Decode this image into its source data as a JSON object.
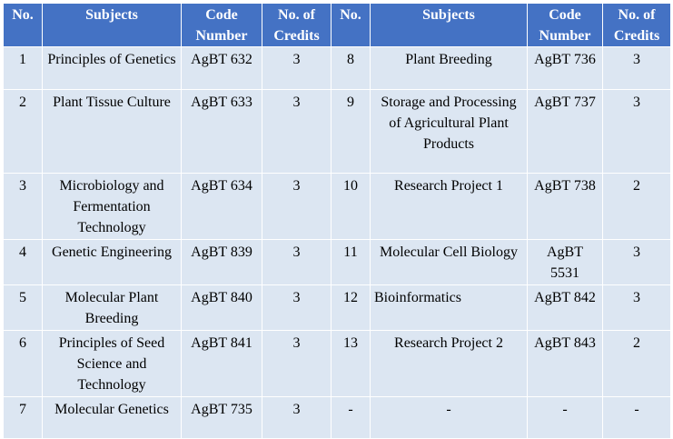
{
  "headers": [
    "No.",
    "Subjects",
    "Code Number",
    "No. of Credits",
    "No.",
    "Subjects",
    "Code Number",
    "No. of Credits"
  ],
  "rows": [
    {
      "left": {
        "no": "1",
        "subject": "Principles of Genetics",
        "code": "AgBT 632",
        "credits": "3"
      },
      "right": {
        "no": "8",
        "subject": "Plant Breeding",
        "code": "AgBT 736",
        "credits": "3"
      }
    },
    {
      "left": {
        "no": "2",
        "subject": "Plant Tissue Culture",
        "code": "AgBT 633",
        "credits": "3"
      },
      "right": {
        "no": "9",
        "subject": "Storage and Processing of Agricultural Plant Products",
        "code": "AgBT 737",
        "credits": "3"
      }
    },
    {
      "left": {
        "no": "3",
        "subject": "Microbiology and Fermentation Technology",
        "code": "AgBT 634",
        "credits": "3"
      },
      "right": {
        "no": "10",
        "subject": "Research Project 1",
        "code": "AgBT 738",
        "credits": "2"
      }
    },
    {
      "left": {
        "no": "4",
        "subject": "Genetic Engineering",
        "code": "AgBT 839",
        "credits": "3"
      },
      "right": {
        "no": "11",
        "subject": "Molecular Cell Biology",
        "code": "AgBT 5531",
        "credits": "3"
      }
    },
    {
      "left": {
        "no": "5",
        "subject": "Molecular Plant Breeding",
        "code": "AgBT 840",
        "credits": "3"
      },
      "right": {
        "no": "12",
        "subject": "Bioinformatics",
        "code": "AgBT 842",
        "credits": "3"
      }
    },
    {
      "left": {
        "no": "6",
        "subject": "Principles of Seed Science and Technology",
        "code": "AgBT 841",
        "credits": "3"
      },
      "right": {
        "no": "13",
        "subject": "Research Project 2",
        "code": "AgBT 843",
        "credits": "2"
      }
    },
    {
      "left": {
        "no": "7",
        "subject": "Molecular Genetics",
        "code": "AgBT 735",
        "credits": "3"
      },
      "right": {
        "no": "-",
        "subject": "-",
        "code": "-",
        "credits": "-"
      }
    }
  ]
}
